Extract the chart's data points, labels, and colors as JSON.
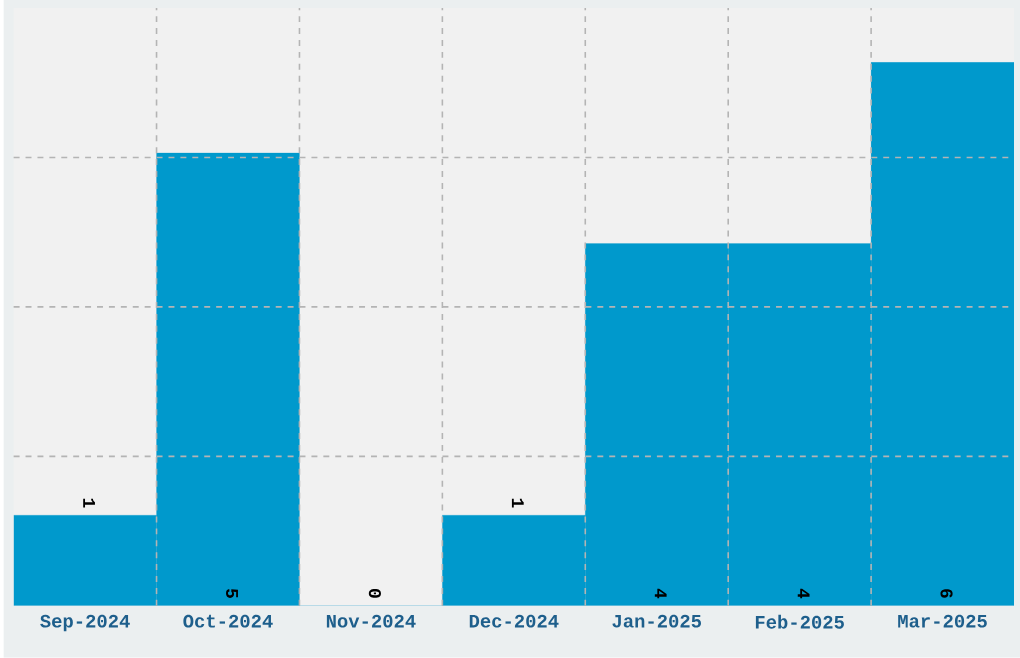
{
  "chart_data": {
    "type": "bar",
    "categories": [
      "Sep-2024",
      "Oct-2024",
      "Nov-2024",
      "Dec-2024",
      "Jan-2025",
      "Feb-2025",
      "Mar-2025"
    ],
    "values": [
      1,
      5,
      0,
      1,
      4,
      4,
      6
    ],
    "color": "#0099cc",
    "ylim": [
      0,
      6.6
    ],
    "yticks": [
      {
        "value": 1.65,
        "label": null
      },
      {
        "value": 3.3,
        "label": null
      },
      {
        "value": 4.95,
        "label": null
      }
    ],
    "tick_labels": "x",
    "grid": true,
    "data_labels": true
  }
}
